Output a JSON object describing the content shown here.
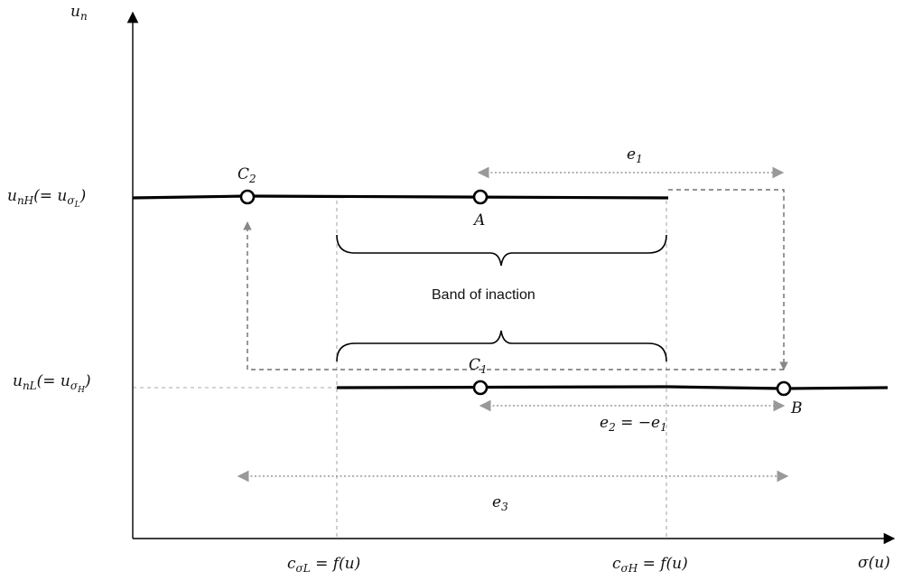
{
  "axes": {
    "y_label": "u_n",
    "x_label": "σ(u)"
  },
  "levels": {
    "high": {
      "main": "u",
      "sub": "nH",
      "rest": "(= u",
      "sub2": "σ",
      "sub3": "L",
      "close": ")"
    },
    "low": {
      "main": "u",
      "sub": "nL",
      "rest": "(= u",
      "sub2": "σ",
      "sub3": "H",
      "close": ")"
    }
  },
  "thresholds": {
    "low": {
      "c": "c",
      "sub": "σL",
      "eq": " = f(u)"
    },
    "high": {
      "c": "c",
      "sub": "σH",
      "eq": " = f(u)"
    }
  },
  "points": {
    "A": "A",
    "B": "B",
    "C1": {
      "main": "C",
      "sub": "1"
    },
    "C2": {
      "main": "C",
      "sub": "2"
    }
  },
  "errors": {
    "e1": {
      "main": "e",
      "sub": "1"
    },
    "e2": {
      "main": "e",
      "sub": "2",
      "rest": " = −e",
      "sub2": "1"
    },
    "e3": {
      "main": "e",
      "sub": "3"
    }
  },
  "band_label": "Band of inaction",
  "colors": {
    "line": "#000000",
    "dashed": "#555555",
    "guide": "#aaaaaa",
    "arrow": "#999999"
  }
}
